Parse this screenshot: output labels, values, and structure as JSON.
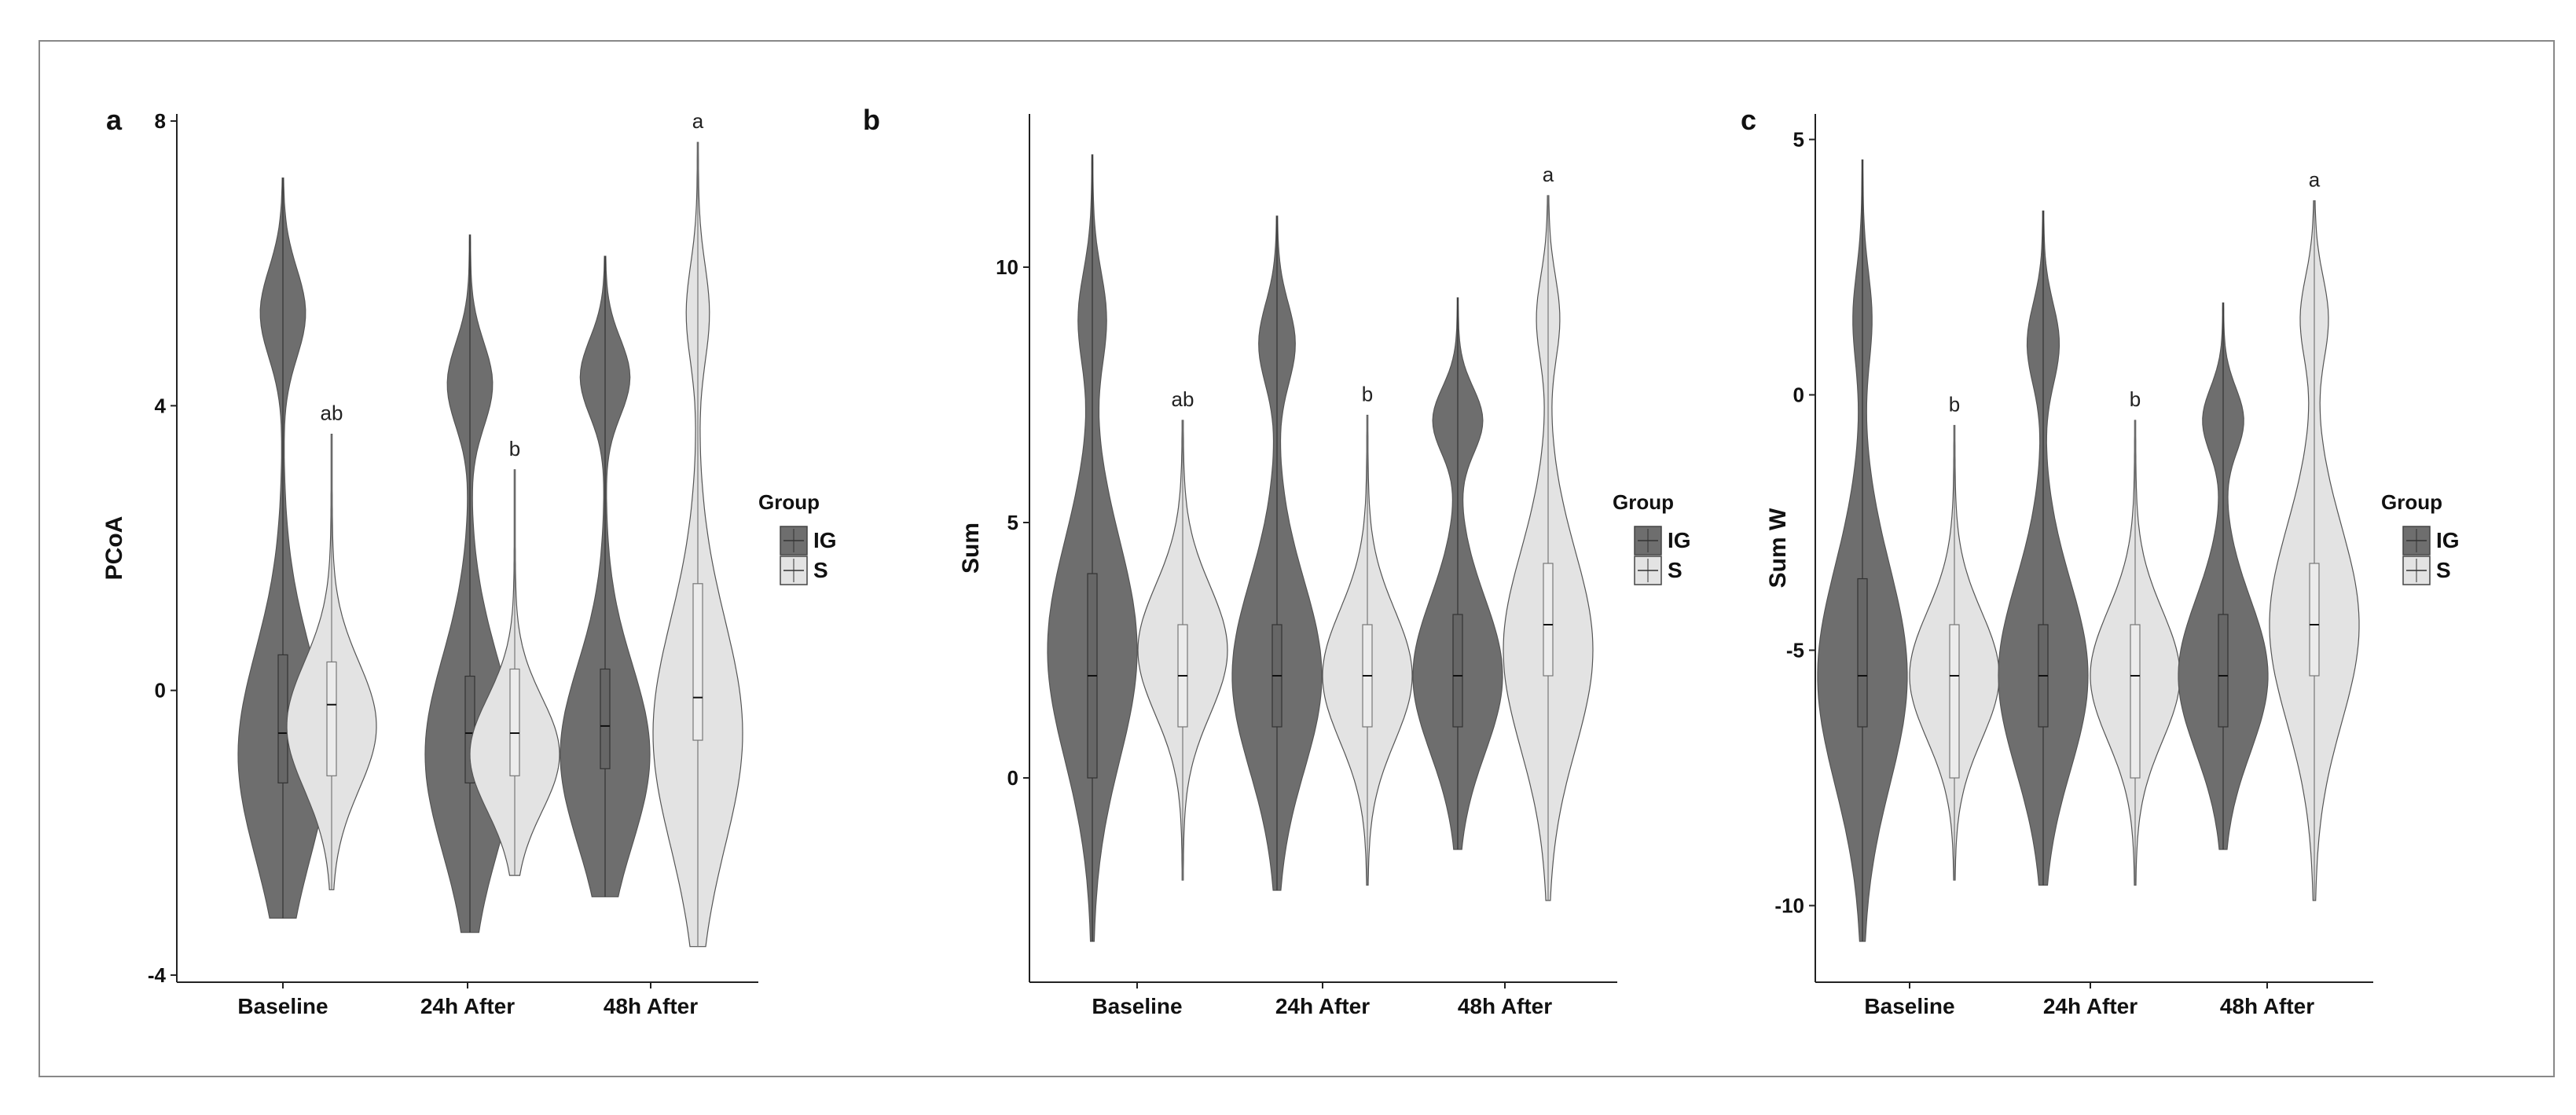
{
  "colors": {
    "IG": "#6e6e6e",
    "S": "#e3e3e3",
    "frame": "#888888"
  },
  "legend": {
    "title": "Group",
    "entries": [
      "IG",
      "S"
    ]
  },
  "chart_data": [
    {
      "type": "violin",
      "panel_label": "a",
      "xlabel": "",
      "ylabel": "PCoA",
      "ylim": [
        -4.1,
        8.1
      ],
      "yticks": [
        -4,
        0,
        4,
        8
      ],
      "categories": [
        "Baseline",
        "24h After",
        "48h After"
      ],
      "series": [
        {
          "name": "IG",
          "groups": [
            {
              "min": -3.2,
              "max": 7.2,
              "q1": -1.3,
              "median": -0.6,
              "q3": 0.5,
              "modes": [
                [
                  -0.9,
                  1.0
                ],
                [
                  5.3,
                  0.5
                ]
              ]
            },
            {
              "min": -3.4,
              "max": 6.4,
              "q1": -1.3,
              "median": -0.6,
              "q3": 0.2,
              "modes": [
                [
                  -0.9,
                  1.0
                ],
                [
                  4.3,
                  0.5
                ]
              ]
            },
            {
              "min": -2.9,
              "max": 6.1,
              "q1": -1.1,
              "median": -0.5,
              "q3": 0.3,
              "modes": [
                [
                  -0.9,
                  1.0
                ],
                [
                  4.4,
                  0.55
                ]
              ]
            }
          ]
        },
        {
          "name": "S",
          "groups": [
            {
              "min": -2.8,
              "max": 3.6,
              "q1": -1.2,
              "median": -0.2,
              "q3": 0.4,
              "modes": [
                [
                  -0.5,
                  1.0
                ]
              ]
            },
            {
              "min": -2.6,
              "max": 3.1,
              "q1": -1.2,
              "median": -0.6,
              "q3": 0.3,
              "modes": [
                [
                  -0.9,
                  1.0
                ]
              ]
            },
            {
              "min": -3.6,
              "max": 7.7,
              "q1": -0.7,
              "median": -0.1,
              "q3": 1.5,
              "modes": [
                [
                  -0.6,
                  1.0
                ],
                [
                  5.3,
                  0.25
                ]
              ]
            }
          ]
        }
      ],
      "significance_labels": [
        "ab",
        "b",
        "a"
      ]
    },
    {
      "type": "violin",
      "panel_label": "b",
      "xlabel": "",
      "ylabel": "Sum",
      "ylim": [
        -4.0,
        13.0
      ],
      "yticks": [
        0,
        5,
        10
      ],
      "categories": [
        "Baseline",
        "24h After",
        "48h After"
      ],
      "series": [
        {
          "name": "IG",
          "groups": [
            {
              "min": -3.2,
              "max": 12.2,
              "q1": 0,
              "median": 2,
              "q3": 4,
              "modes": [
                [
                  2.5,
                  1.0
                ],
                [
                  9,
                  0.3
                ]
              ]
            },
            {
              "min": -2.2,
              "max": 11.0,
              "q1": 1,
              "median": 2,
              "q3": 3,
              "modes": [
                [
                  2,
                  1.0
                ],
                [
                  8.5,
                  0.4
                ]
              ]
            },
            {
              "min": -1.4,
              "max": 9.4,
              "q1": 1,
              "median": 2,
              "q3": 3.2,
              "modes": [
                [
                  2,
                  1.0
                ],
                [
                  7,
                  0.55
                ]
              ]
            }
          ]
        },
        {
          "name": "S",
          "groups": [
            {
              "min": -2.0,
              "max": 7.0,
              "q1": 1,
              "median": 2,
              "q3": 3,
              "modes": [
                [
                  2.5,
                  1.0
                ]
              ]
            },
            {
              "min": -2.1,
              "max": 7.1,
              "q1": 1,
              "median": 2,
              "q3": 3,
              "modes": [
                [
                  2,
                  1.0
                ]
              ]
            },
            {
              "min": -2.4,
              "max": 11.4,
              "q1": 2,
              "median": 3,
              "q3": 4.2,
              "modes": [
                [
                  2.5,
                  1.0
                ],
                [
                  9,
                  0.25
                ]
              ]
            }
          ]
        }
      ],
      "significance_labels": [
        "ab",
        "b",
        "a"
      ]
    },
    {
      "type": "violin",
      "panel_label": "c",
      "xlabel": "",
      "ylabel": "Sum W",
      "ylim": [
        -11.5,
        5.5
      ],
      "yticks": [
        -10,
        -5,
        0,
        5
      ],
      "categories": [
        "Baseline",
        "24h After",
        "48h After"
      ],
      "series": [
        {
          "name": "IG",
          "groups": [
            {
              "min": -10.7,
              "max": 4.6,
              "q1": -6.5,
              "median": -5.5,
              "q3": -3.6,
              "modes": [
                [
                  -5.5,
                  1.0
                ],
                [
                  1.5,
                  0.2
                ]
              ]
            },
            {
              "min": -9.6,
              "max": 3.6,
              "q1": -6.5,
              "median": -5.5,
              "q3": -4.5,
              "modes": [
                [
                  -5.5,
                  1.0
                ],
                [
                  1,
                  0.35
                ]
              ]
            },
            {
              "min": -8.9,
              "max": 1.8,
              "q1": -6.5,
              "median": -5.5,
              "q3": -4.3,
              "modes": [
                [
                  -5.5,
                  1.0
                ],
                [
                  -0.5,
                  0.45
                ]
              ]
            }
          ]
        },
        {
          "name": "S",
          "groups": [
            {
              "min": -9.5,
              "max": -0.6,
              "q1": -7.5,
              "median": -5.5,
              "q3": -4.5,
              "modes": [
                [
                  -5.5,
                  1.0
                ]
              ]
            },
            {
              "min": -9.6,
              "max": -0.5,
              "q1": -7.5,
              "median": -5.5,
              "q3": -4.5,
              "modes": [
                [
                  -5.5,
                  1.0
                ]
              ]
            },
            {
              "min": -9.9,
              "max": 3.8,
              "q1": -5.5,
              "median": -4.5,
              "q3": -3.3,
              "modes": [
                [
                  -4.5,
                  1.0
                ],
                [
                  1.5,
                  0.3
                ]
              ]
            }
          ]
        }
      ],
      "significance_labels": [
        "b",
        "b",
        "a"
      ]
    }
  ]
}
